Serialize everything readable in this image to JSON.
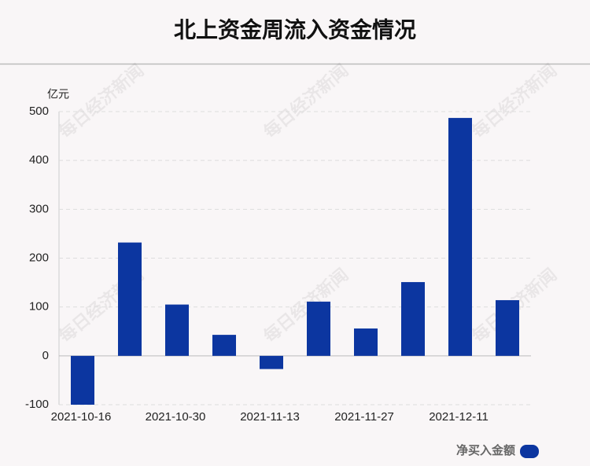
{
  "chart_data": {
    "type": "bar",
    "title": "北上资金周流入资金情况",
    "y_unit": "亿元",
    "watermark": "每日经济新闻",
    "categories": [
      "2021-10-16",
      null,
      "2021-10-30",
      null,
      "2021-11-13",
      null,
      "2021-11-27",
      null,
      "2021-12-11",
      null
    ],
    "series": [
      {
        "name": "净买入金额",
        "color": "#0c36a0",
        "values": [
          -100,
          232,
          105,
          43,
          -27,
          111,
          56,
          151,
          487,
          114
        ]
      }
    ],
    "ylim": [
      -100,
      500
    ],
    "yticks": [
      -100,
      0,
      100,
      200,
      300,
      400,
      500
    ],
    "grid": true,
    "legend": "bottom-right"
  }
}
